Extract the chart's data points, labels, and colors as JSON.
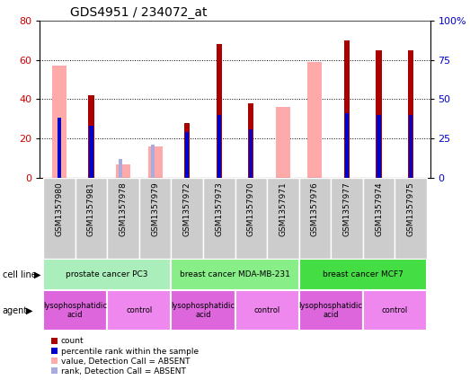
{
  "title": "GDS4951 / 234072_at",
  "samples": [
    "GSM1357980",
    "GSM1357981",
    "GSM1357978",
    "GSM1357979",
    "GSM1357972",
    "GSM1357973",
    "GSM1357970",
    "GSM1357971",
    "GSM1357976",
    "GSM1357977",
    "GSM1357974",
    "GSM1357975"
  ],
  "count": [
    0,
    42,
    0,
    0,
    28,
    68,
    38,
    0,
    0,
    70,
    65,
    65
  ],
  "percentile_rank": [
    38,
    33,
    0,
    0,
    29,
    40,
    31,
    0,
    0,
    41,
    40,
    40
  ],
  "value_absent": [
    57,
    0,
    7,
    16,
    0,
    0,
    0,
    36,
    59,
    0,
    0,
    0
  ],
  "rank_absent": [
    0,
    0,
    12,
    21,
    0,
    0,
    0,
    0,
    0,
    0,
    0,
    0
  ],
  "cell_lines": [
    {
      "label": "prostate cancer PC3",
      "start": 0,
      "end": 4,
      "color": "#aaeebb"
    },
    {
      "label": "breast cancer MDA-MB-231",
      "start": 4,
      "end": 8,
      "color": "#88ee88"
    },
    {
      "label": "breast cancer MCF7",
      "start": 8,
      "end": 12,
      "color": "#44dd44"
    }
  ],
  "agents": [
    {
      "label": "lysophosphatidic\nacid",
      "start": 0,
      "end": 2,
      "color": "#dd66dd"
    },
    {
      "label": "control",
      "start": 2,
      "end": 4,
      "color": "#ee88ee"
    },
    {
      "label": "lysophosphatidic\nacid",
      "start": 4,
      "end": 6,
      "color": "#dd66dd"
    },
    {
      "label": "control",
      "start": 6,
      "end": 8,
      "color": "#ee88ee"
    },
    {
      "label": "lysophosphatidic\nacid",
      "start": 8,
      "end": 10,
      "color": "#dd66dd"
    },
    {
      "label": "control",
      "start": 10,
      "end": 12,
      "color": "#ee88ee"
    }
  ],
  "ylim_left": [
    0,
    80
  ],
  "ylim_right": [
    0,
    100
  ],
  "yticks_left": [
    0,
    20,
    40,
    60,
    80
  ],
  "yticks_right": [
    0,
    25,
    50,
    75,
    100
  ],
  "count_color": "#aa0000",
  "percentile_color": "#0000cc",
  "value_absent_color": "#ffaaaa",
  "rank_absent_color": "#aaaadd",
  "bg_color": "#ffffff",
  "label_color_left": "#cc0000",
  "label_color_right": "#0000cc",
  "tick_box_color": "#cccccc"
}
